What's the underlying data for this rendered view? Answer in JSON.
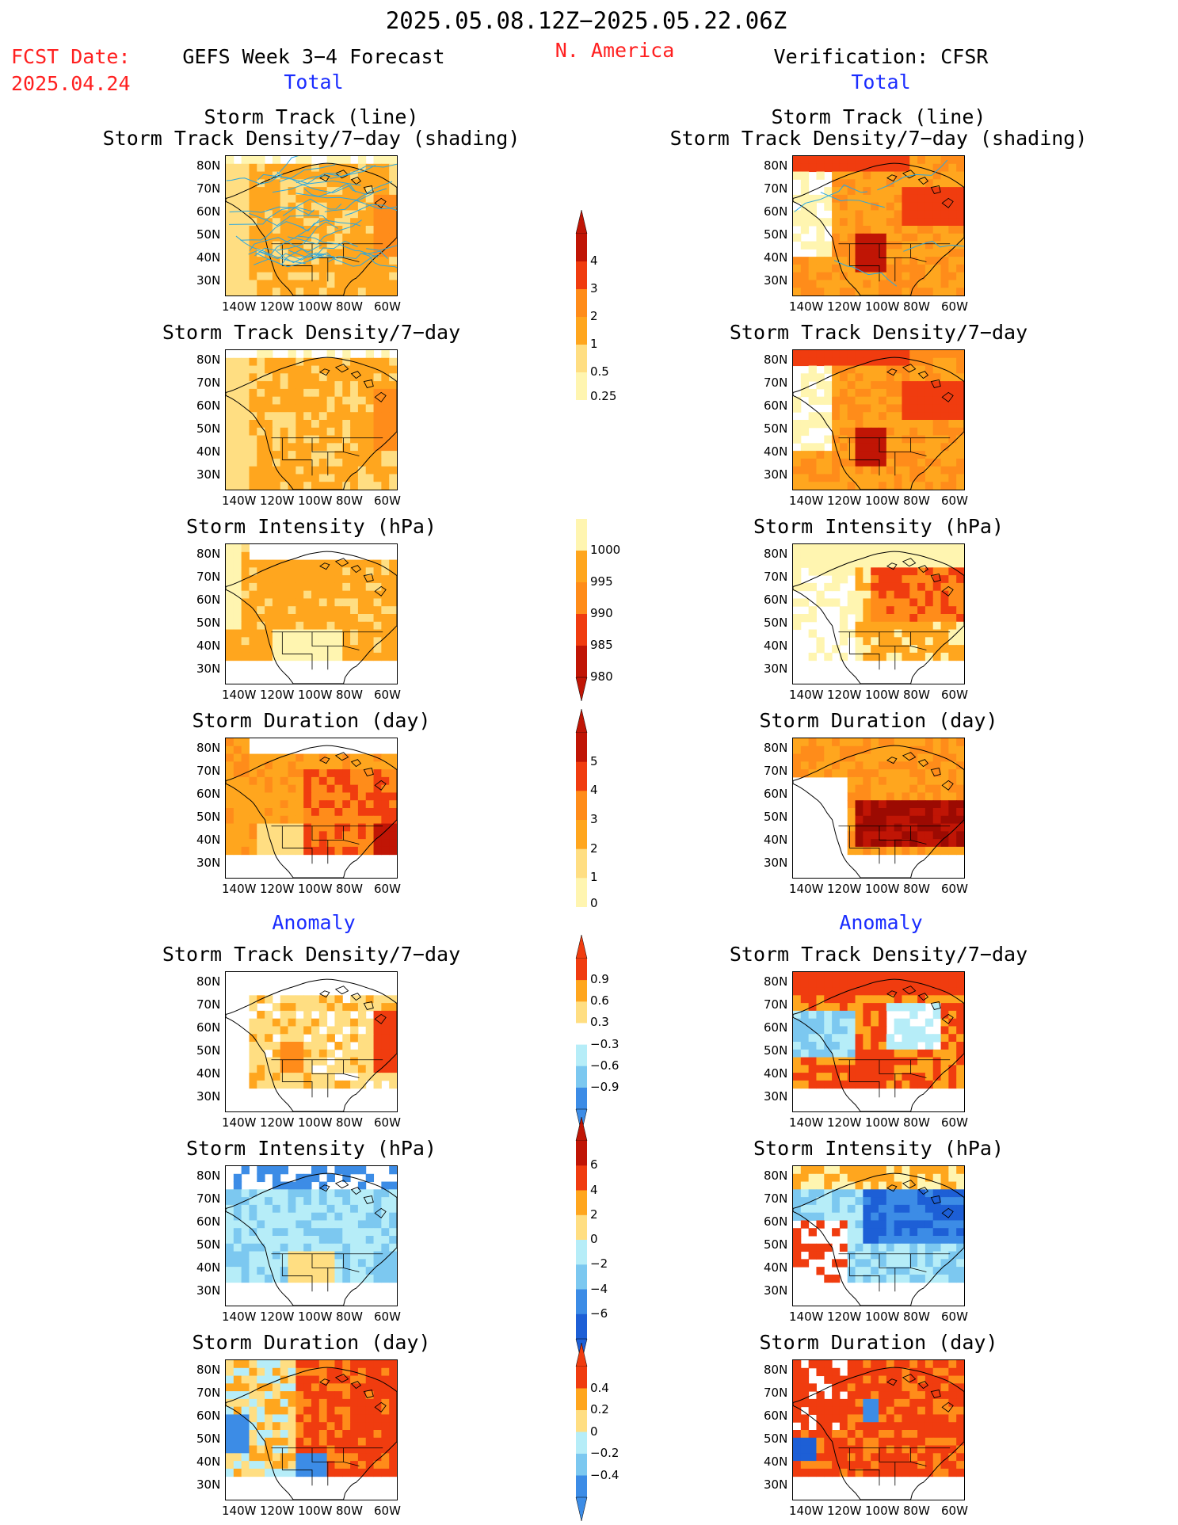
{
  "header": {
    "date_range": "2025.05.08.12Z−2025.05.22.06Z",
    "fcst_label": "FCST Date:",
    "fcst_date": "2025.04.24",
    "region": "N. America",
    "left_title": "GEFS Week 3−4 Forecast",
    "right_title": "Verification: CFSR"
  },
  "sections": {
    "total": "Total",
    "anomaly": "Anomaly"
  },
  "panel_titles": {
    "track_line": "Storm Track (line)",
    "track_shading": "Storm Track Density/7−day (shading)",
    "density": "Storm Track Density/7−day",
    "intensity": "Storm Intensity (hPa)",
    "duration": "Storm Duration (day)"
  },
  "axes": {
    "lat_labels": [
      "80N",
      "70N",
      "60N",
      "50N",
      "40N",
      "30N"
    ],
    "lon_labels": [
      "140W",
      "120W",
      "100W",
      "80W",
      "60W"
    ]
  },
  "colorbars": {
    "density_total": [
      "4",
      "3",
      "2",
      "1",
      "0.5",
      "0.25"
    ],
    "intensity_total": [
      "1000",
      "995",
      "990",
      "985",
      "980"
    ],
    "duration_total": [
      "5",
      "4",
      "3",
      "2",
      "1",
      "0"
    ],
    "density_anom": [
      "0.9",
      "0.6",
      "0.3",
      "−0.3",
      "−0.6",
      "−0.9"
    ],
    "intensity_anom": [
      "6",
      "4",
      "2",
      "0",
      "−2",
      "−4",
      "−6"
    ],
    "duration_anom": [
      "0.4",
      "0.2",
      "0",
      "−0.2",
      "−0.4"
    ]
  },
  "colors": {
    "title_red": "#ff2020",
    "label_blue": "#1a2cff",
    "track_line": "#2aa7e0"
  }
}
